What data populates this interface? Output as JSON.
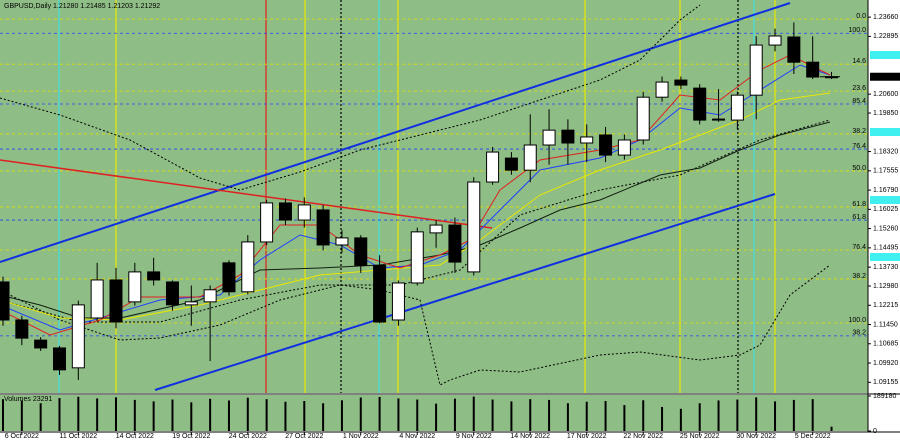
{
  "chart_data": {
    "type": "candlestick",
    "symbol": "GBPUSD,Daily",
    "quote_labels": [
      "1.21280",
      "1.21485",
      "1.21203",
      "1.21292"
    ],
    "categories": [
      null,
      "6 Oct 2022",
      null,
      null,
      "11 Oct 2022",
      null,
      null,
      "14 Oct 2022",
      null,
      null,
      "19 Oct 2022",
      null,
      null,
      "24 Oct 2022",
      null,
      null,
      "27 Oct 2022",
      null,
      null,
      "1 Nov 2022",
      null,
      null,
      "4 Nov 2022",
      null,
      null,
      "9 Nov 2022",
      null,
      null,
      "14 Nov 2022",
      null,
      null,
      "17 Nov 2022",
      null,
      null,
      "22 Nov 2022",
      null,
      null,
      "25 Nov 2022",
      null,
      null,
      "30 Nov 2022",
      null,
      null,
      "5 Dec 2022",
      null
    ],
    "open": [
      1.1314,
      1.1163,
      1.1083,
      1.1052,
      1.0973,
      1.1171,
      1.1322,
      1.1235,
      1.1354,
      1.1314,
      1.1223,
      1.1235,
      1.139,
      1.1275,
      1.1473,
      1.1628,
      1.156,
      1.16,
      1.1461,
      1.1489,
      1.138,
      1.1163,
      1.131,
      1.1509,
      1.154,
      1.1354,
      1.1711,
      1.1806,
      1.1758,
      1.1858,
      1.1917,
      1.1866,
      1.1898,
      1.1818,
      1.1878,
      1.2048,
      1.2116,
      1.2084,
      1.1961,
      1.1957,
      1.2056,
      1.2255,
      1.2287,
      1.2187,
      1.2128
    ],
    "high": [
      1.1335,
      1.118,
      1.1095,
      1.106,
      1.124,
      1.139,
      1.137,
      1.139,
      1.141,
      1.132,
      1.13,
      1.13,
      1.14,
      1.15,
      1.164,
      1.1645,
      1.165,
      1.162,
      1.152,
      1.15,
      1.142,
      1.132,
      1.153,
      1.156,
      1.157,
      1.173,
      1.185,
      1.183,
      1.198,
      1.2,
      1.196,
      1.194,
      1.193,
      1.19,
      1.207,
      1.213,
      1.213,
      1.21,
      1.208,
      1.207,
      1.229,
      1.232,
      1.2345,
      1.229,
      1.21485
    ],
    "low": [
      1.114,
      1.1063,
      1.104,
      1.0945,
      1.0925,
      1.116,
      1.113,
      1.122,
      1.13,
      1.12,
      1.114,
      1.1,
      1.126,
      1.1265,
      1.146,
      1.154,
      1.153,
      1.144,
      1.143,
      1.135,
      1.115,
      1.114,
      1.13,
      1.145,
      1.135,
      1.134,
      1.17,
      1.174,
      1.171,
      1.178,
      1.178,
      1.179,
      1.179,
      1.18,
      1.186,
      1.203,
      1.208,
      1.194,
      1.195,
      1.192,
      1.196,
      1.223,
      1.214,
      1.212,
      1.21203
    ],
    "close": [
      1.1163,
      1.1091,
      1.1052,
      1.0965,
      1.1223,
      1.1322,
      1.1155,
      1.1354,
      1.1322,
      1.1223,
      1.1235,
      1.1283,
      1.1275,
      1.1473,
      1.1628,
      1.156,
      1.162,
      1.1461,
      1.1489,
      1.138,
      1.1155,
      1.131,
      1.1513,
      1.154,
      1.1393,
      1.1711,
      1.183,
      1.1758,
      1.1858,
      1.1917,
      1.1866,
      1.189,
      1.1818,
      1.1878,
      1.2048,
      1.2108,
      1.2096,
      1.1957,
      1.1957,
      1.2056,
      1.2255,
      1.2291,
      1.2187,
      1.2128,
      1.21292
    ],
    "ylim": [
      1.0873,
      1.2434
    ],
    "yticks": [
      {
        "value": 1.2366,
        "label": "1.23660"
      },
      1.22895,
      {
        "value": 1.206,
        "label": "1.20600"
      },
      {
        "value": 1.1985,
        "label": "1.19850"
      },
      {
        "value": 1.1832,
        "label": "1.18320"
      },
      1.17555,
      {
        "value": 1.1679,
        "label": "1.16790"
      },
      1.16025,
      {
        "value": 1.1526,
        "label": "1.15260"
      },
      1.14495,
      {
        "value": 1.1373,
        "label": "1.13730"
      },
      {
        "value": 1.1298,
        "label": "1.12980"
      },
      1.12215,
      {
        "value": 1.1145,
        "label": "1.11450"
      },
      1.10685,
      {
        "value": 1.0992,
        "label": "1.09920"
      },
      1.09155
    ],
    "last_price": 1.21292,
    "fib_levels": [
      {
        "label": "0.0",
        "price": 1.2358,
        "color": "#e0e000"
      },
      {
        "label": "100.0",
        "price": 1.2302,
        "color": "#2040ff"
      },
      {
        "label": "14.6",
        "price": 1.2179,
        "color": "#e0e000"
      },
      {
        "label": "23.6",
        "price": 1.2072,
        "color": "#e0e000"
      },
      {
        "label": "85.4",
        "price": 1.2021,
        "color": "#2040ff"
      },
      {
        "label": "38.2",
        "price": 1.1902,
        "color": "#e0e000"
      },
      {
        "label": "76.4",
        "price": 1.1842,
        "color": "#2040ff"
      },
      {
        "label": "50.0",
        "price": 1.1755,
        "color": "#e0e000"
      },
      {
        "label": "61.8",
        "price": 1.1612,
        "color": "#e0e000"
      },
      {
        "label": "61.8",
        "price": 1.156,
        "color": "#2040ff"
      },
      {
        "label": "76.4",
        "price": 1.1441,
        "color": "#e0e000"
      },
      {
        "label": "38.2",
        "price": 1.1326,
        "color": "#e0e000"
      },
      {
        "label": "100.0",
        "price": 1.1151,
        "color": "#e0e000"
      },
      {
        "label": "38.2",
        "price": 1.11,
        "color": "#2040ff"
      }
    ],
    "volume": {
      "title": "Volumes",
      "values": [
        172000,
        165000,
        150000,
        178000,
        185000,
        176000,
        182000,
        168000,
        160000,
        170000,
        155000,
        174000,
        165000,
        180000,
        172000,
        158000,
        162000,
        150000,
        166000,
        181000,
        184000,
        176000,
        170000,
        148000,
        175000,
        186000,
        170000,
        160000,
        172000,
        168000,
        150000,
        158000,
        162000,
        140000,
        166000,
        130000,
        120000,
        150000,
        165000,
        170000,
        182000,
        160000,
        168000,
        172000,
        23291
      ],
      "ylim": [
        0,
        189180
      ],
      "yticks": [
        0,
        189180
      ]
    },
    "colors": {
      "up": "#ffffff",
      "down": "#000000",
      "background": "#8fbd86"
    }
  }
}
